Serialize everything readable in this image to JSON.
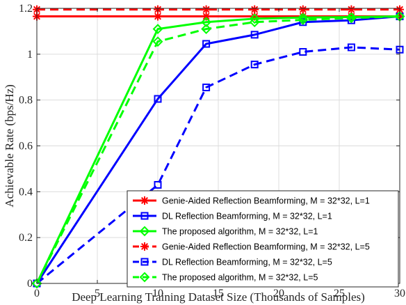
{
  "chart_data": {
    "type": "line",
    "xlabel": "Deep Learning Training Dataset Size (Thousands of Samples)",
    "ylabel": "Achievable Rate (bps/Hz)",
    "xlim": [
      0,
      30
    ],
    "ylim": [
      0,
      1.2
    ],
    "xticks": [
      "0",
      "5",
      "10",
      "15",
      "20",
      "25",
      "30"
    ],
    "yticks": [
      "0",
      "0.2",
      "0.4",
      "0.6",
      "0.8",
      "1",
      "1.2"
    ],
    "grid": true,
    "legend_position": "bottom-right",
    "series": [
      {
        "name": "Genie-Aided Reflection Beamforming, M = 32*32, L=1",
        "color": "#ff0000",
        "dash": "solid",
        "marker": "asterisk",
        "x": [
          0,
          10,
          14,
          18,
          22,
          26,
          30
        ],
        "y": [
          1.165,
          1.165,
          1.165,
          1.165,
          1.165,
          1.165,
          1.165
        ]
      },
      {
        "name": "DL Reflection Beamforming, M = 32*32, L=1",
        "color": "#0000ff",
        "dash": "solid",
        "marker": "square",
        "x": [
          0,
          10,
          14,
          18,
          22,
          26,
          30
        ],
        "y": [
          0.0,
          0.805,
          1.045,
          1.085,
          1.14,
          1.148,
          1.165
        ]
      },
      {
        "name": "The proposed algorithm, M = 32*32, L=1",
        "color": "#00ff00",
        "dash": "solid",
        "marker": "diamond",
        "x": [
          0,
          10,
          14,
          18,
          22,
          26,
          30
        ],
        "y": [
          0.0,
          1.11,
          1.14,
          1.155,
          1.16,
          1.162,
          1.165
        ]
      },
      {
        "name": "Genie-Aided Reflection Beamforming, M = 32*32, L=5",
        "color": "#ff0000",
        "dash": "dashed",
        "marker": "asterisk",
        "x": [
          0,
          10,
          14,
          18,
          22,
          26,
          30
        ],
        "y": [
          1.195,
          1.195,
          1.195,
          1.195,
          1.195,
          1.195,
          1.195
        ]
      },
      {
        "name": "DL Reflection Beamforming, M = 32*32, L=5",
        "color": "#0000ff",
        "dash": "dashed",
        "marker": "square",
        "x": [
          0,
          10,
          14,
          18,
          22,
          26,
          30
        ],
        "y": [
          0.0,
          0.43,
          0.855,
          0.955,
          1.01,
          1.03,
          1.02
        ]
      },
      {
        "name": "The proposed algorithm, M = 32*32, L=5",
        "color": "#00ff00",
        "dash": "dashed",
        "marker": "diamond",
        "x": [
          0,
          10,
          14,
          18,
          22,
          26,
          30
        ],
        "y": [
          0.0,
          1.055,
          1.11,
          1.14,
          1.15,
          1.158,
          1.165
        ]
      }
    ]
  }
}
